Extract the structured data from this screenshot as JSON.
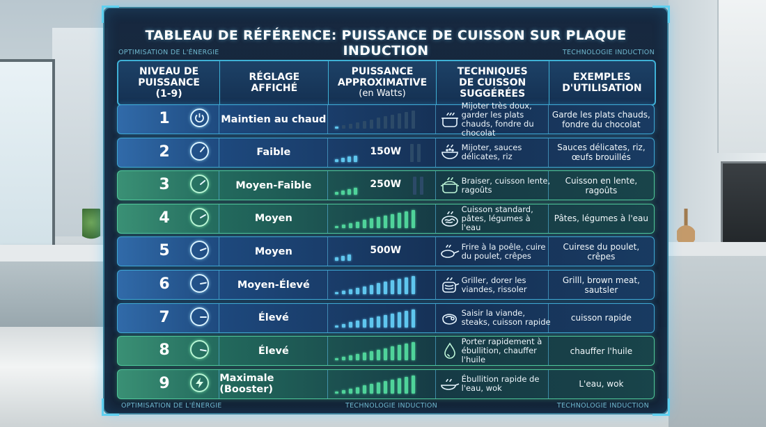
{
  "header": {
    "title": "TABLEAU DE RÉFÉRENCE: PUISSANCE DE CUISSON SUR PLAQUE INDUCTION",
    "tag_top_left": "OPTIMISATION DE L'ÉNERGIE",
    "tag_top_right": "TECHNOLOGIE INDUCTION",
    "tag_bottom_left": "OPTIMISATION DE L'ÉNERGIE",
    "tag_bottom_center": "TECHNOLOGIE INDUCTION",
    "tag_bottom_right": "TECHNOLOGIE INDUCTION"
  },
  "columns": {
    "level_l1": "NIVEAU DE",
    "level_l2": "PUISSANCE",
    "level_l3": "(1-9)",
    "setting_l1": "RÉGLAGE",
    "setting_l2": "AFFICHÉ",
    "power_l1": "PUISSANCE",
    "power_l2": "APPROXIMATIVE",
    "power_l3": "(en Watts)",
    "tech_l1": "TECHNIQUES",
    "tech_l2": "DE CUISSON",
    "tech_l3": "SUGGÉRÉES",
    "ex_l1": "EXEMPLES",
    "ex_l2": "D'UTILISATION"
  },
  "rows": [
    {
      "level": "1",
      "setting": "Maintien au chaud",
      "watts": "",
      "bars_lit": 1,
      "bars_total": 12,
      "theme": "blue",
      "knob_icon": "power-icon",
      "tech_icon": "pot-icon",
      "tech": "Mijoter très doux, garder les plats chauds, fondre du chocolat",
      "example": "Garde les plats chauds, fondre du chocolat"
    },
    {
      "level": "2",
      "setting": "Faible",
      "watts": "150W",
      "bars_lit": 4,
      "bars_total": 4,
      "theme": "blue",
      "knob_icon": "dial-icon",
      "tech_icon": "bowl-icon",
      "tech": "Mijoter, sauces délicates, riz",
      "example": "Sauces délicates, riz, œufs brouillés"
    },
    {
      "level": "3",
      "setting": "Moyen-Faible",
      "watts": "250W",
      "bars_lit": 4,
      "bars_total": 4,
      "theme": "green",
      "knob_icon": "dial-icon",
      "tech_icon": "stew-pot-icon",
      "tech": "Braiser, cuisson lente, ragoûts",
      "example": "Cuisson en lente, ragoûts"
    },
    {
      "level": "4",
      "setting": "Moyen",
      "watts": "",
      "bars_lit": 12,
      "bars_total": 12,
      "theme": "green",
      "knob_icon": "dial-icon",
      "tech_icon": "pasta-icon",
      "tech": "Cuisson standard, pâtes, légumes à l'eau",
      "example": "Pâtes, légumes à l'eau"
    },
    {
      "level": "5",
      "setting": "Moyen",
      "watts": "500W",
      "bars_lit": 3,
      "bars_total": 3,
      "theme": "blue",
      "knob_icon": "dial-icon",
      "tech_icon": "frying-pan-icon",
      "tech": "Frire à la poêle, cuire du poulet, crêpes",
      "example": "Cuirese du poulet, crêpes"
    },
    {
      "level": "6",
      "setting": "Moyen-Élevé",
      "watts": "",
      "bars_lit": 12,
      "bars_total": 12,
      "theme": "blue",
      "knob_icon": "dial-icon",
      "tech_icon": "grill-icon",
      "tech": "Griller, dorer les viandes, rissoler",
      "example": "Grilll, brown meat, sautsler"
    },
    {
      "level": "7",
      "setting": "Élevé",
      "watts": "",
      "bars_lit": 12,
      "bars_total": 12,
      "theme": "blue",
      "knob_icon": "dial-icon",
      "tech_icon": "steak-icon",
      "tech": "Saisir la viande, steaks, cuisson rapide",
      "example": "cuisson rapide"
    },
    {
      "level": "8",
      "setting": "Élevé",
      "watts": "",
      "bars_lit": 12,
      "bars_total": 12,
      "theme": "green",
      "knob_icon": "dial-icon",
      "tech_icon": "oil-drop-icon",
      "tech": "Porter rapidement à ébullition, chauffer l'huile",
      "example": "chauffer l'huile"
    },
    {
      "level": "9",
      "setting": "Maximale (Booster)",
      "watts": "",
      "bars_lit": 12,
      "bars_total": 12,
      "theme": "green",
      "knob_icon": "lightning-icon",
      "tech_icon": "wok-icon",
      "tech": "Ébullition rapide de l'eau, wok",
      "example": "L'eau, wok"
    }
  ],
  "colors": {
    "accent": "#3fb1d6",
    "bar_blue": "#5fc6ee",
    "bar_green": "#4fd39a",
    "bar_dim": "#2c4a68",
    "panel": "#0a1c34"
  }
}
